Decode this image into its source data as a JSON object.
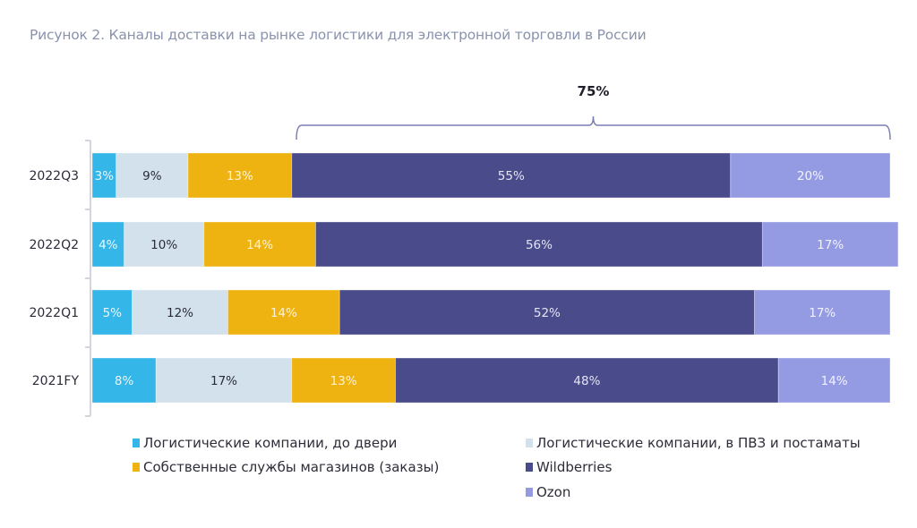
{
  "title": "Рисунок 2. Каналы доставки на рынке логистики для электронной торговли в России",
  "chart_data": {
    "type": "bar",
    "orientation": "horizontal-stacked-100",
    "title": "Рисунок 2. Каналы доставки на рынке логистики для электронной торговли в России",
    "xlabel": "",
    "ylabel": "",
    "xlim": [
      0,
      100
    ],
    "grid": false,
    "legend_position": "bottom",
    "categories": [
      "2022Q3",
      "2022Q2",
      "2022Q1",
      "2021FY"
    ],
    "series": [
      {
        "name": "Логистические компании, до двери",
        "color": "#35b6e8",
        "label_color": "#e8f6fc",
        "values": [
          3,
          4,
          5,
          8
        ]
      },
      {
        "name": "Логистические компании, в ПВЗ и постаматы",
        "color": "#d3e1ed",
        "label_color": "#2b2b3a",
        "values": [
          9,
          10,
          12,
          17
        ]
      },
      {
        "name": "Собственные службы магазинов (заказы)",
        "color": "#efb311",
        "label_color": "#fdf3d6",
        "values": [
          13,
          14,
          14,
          13
        ]
      },
      {
        "name": "Wildberries",
        "color": "#4a4b8b",
        "label_color": "#e4e5f3",
        "values": [
          55,
          56,
          52,
          48
        ]
      },
      {
        "name": "Ozon",
        "color": "#959be3",
        "label_color": "#f1f2fc",
        "values": [
          20,
          17,
          17,
          14
        ]
      }
    ],
    "annotations": [
      {
        "text": "75%",
        "type": "brace",
        "row": "2022Q3",
        "spans_series": [
          "Wildberries",
          "Ozon"
        ]
      }
    ]
  },
  "legend_order": [
    0,
    1,
    2,
    3,
    4
  ],
  "colors": {
    "axis": "#d4d4dc",
    "brace": "#7b7fb5",
    "category_text": "#2b2b3a"
  }
}
